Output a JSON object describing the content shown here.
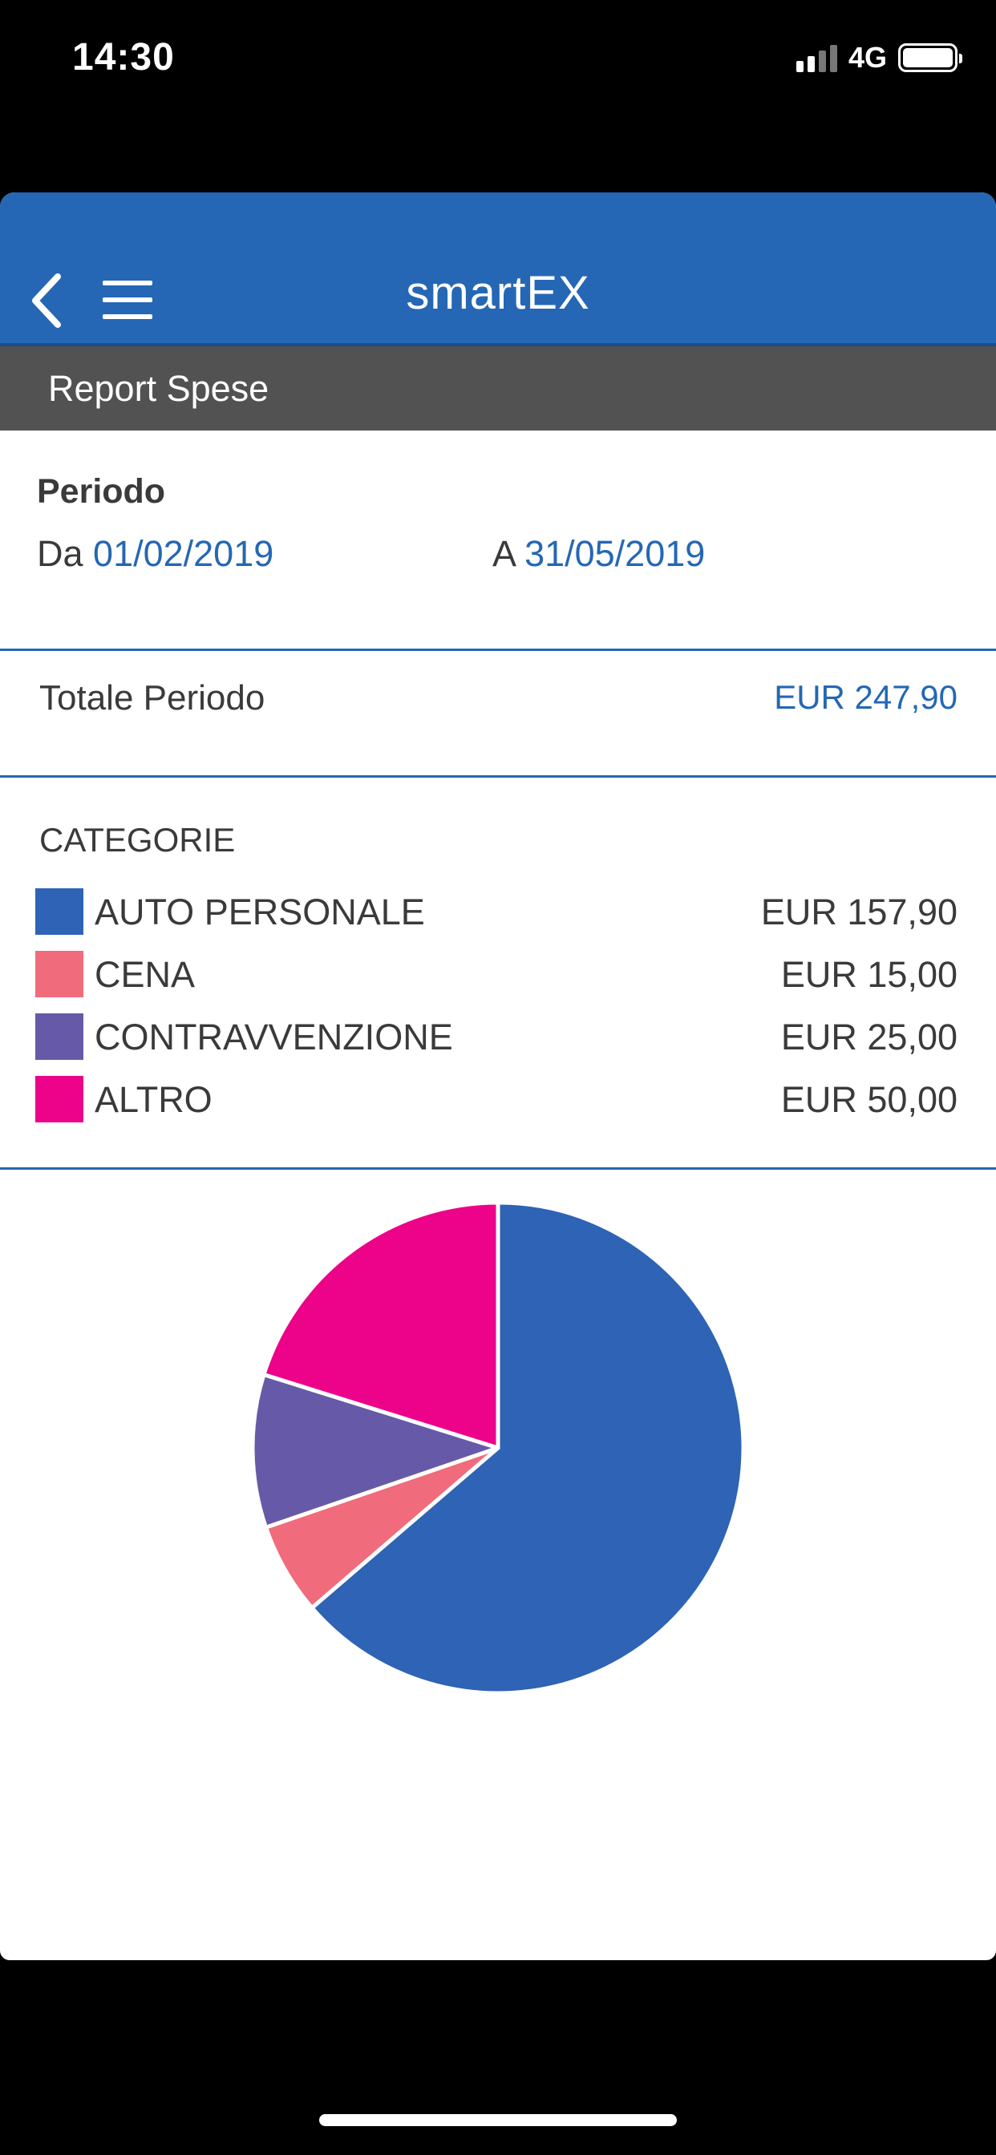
{
  "status_bar": {
    "time": "14:30",
    "network": "4G",
    "signal_bars_active": 2,
    "battery_icon": "battery-icon"
  },
  "navbar": {
    "brand": "smartEX",
    "back_icon": "chevron-left-icon",
    "menu_icon": "hamburger-menu-icon",
    "color": "#2567b4"
  },
  "section": {
    "title": "Report Spese"
  },
  "periodo": {
    "title": "Periodo",
    "from_label": "Da",
    "from_value": "01/02/2019",
    "to_label": "A",
    "to_value": "31/05/2019"
  },
  "totale": {
    "label": "Totale Periodo",
    "value": "EUR 247,90"
  },
  "categorie": {
    "title": "CATEGORIE",
    "items": [
      {
        "name": "AUTO PERSONALE",
        "amount": "EUR 157,90",
        "color": "#2e63b5"
      },
      {
        "name": "CENA",
        "amount": "EUR 15,00",
        "color": "#f06b7c"
      },
      {
        "name": "CONTRAVVENZIONE",
        "amount": "EUR 25,00",
        "color": "#665aa8"
      },
      {
        "name": "ALTRO",
        "amount": "EUR 50,00",
        "color": "#ec0389"
      }
    ]
  },
  "chart_data": {
    "type": "pie",
    "categories": [
      "AUTO PERSONALE",
      "CENA",
      "CONTRAVVENZIONE",
      "ALTRO"
    ],
    "values": [
      157.9,
      15.0,
      25.0,
      50.0
    ],
    "colors": [
      "#2e63b5",
      "#f06b7c",
      "#665aa8",
      "#ec0389"
    ],
    "start_angle_deg": 0,
    "direction": "clockwise",
    "legend": "none"
  }
}
